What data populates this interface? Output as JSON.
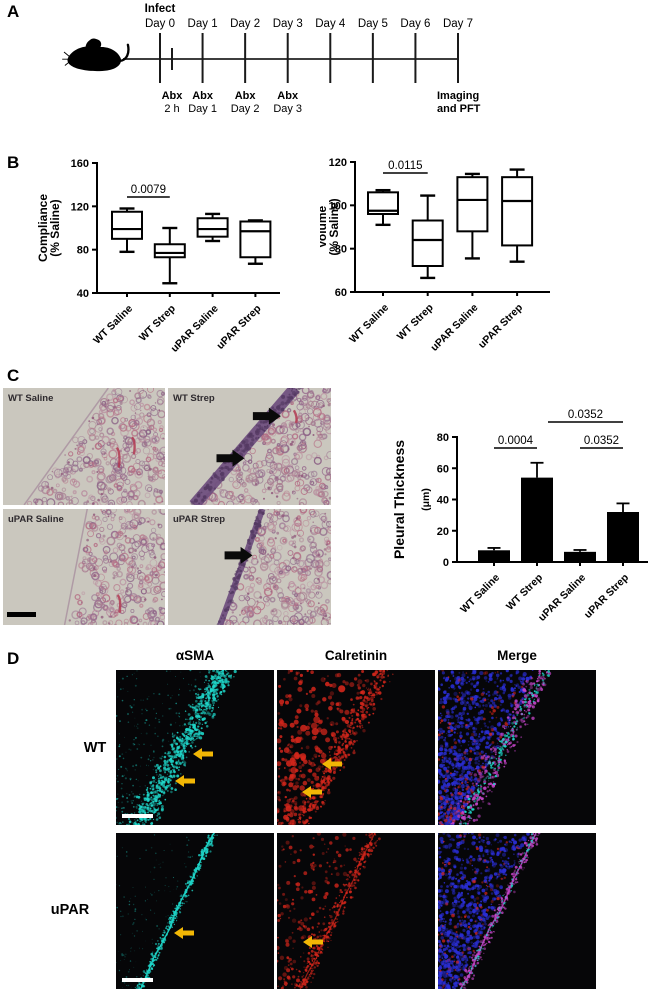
{
  "panel_a": {
    "label": "A",
    "infect_label": "Infect",
    "timeline_days": [
      "Day 0",
      "Day 1",
      "Day 2",
      "Day 3",
      "Day 4",
      "Day 5",
      "Day 6",
      "Day 7"
    ],
    "abx_label": "Abx",
    "abx_sublabels": [
      "2 h",
      "Day 1",
      "Day 2",
      "Day 3"
    ],
    "endpoint_line1": "Imaging",
    "endpoint_line2": "and PFT",
    "mouse_icon": "mouse-icon",
    "line_color": "#3d3d3d"
  },
  "panel_b": {
    "label": "B"
  },
  "panel_c": {
    "label": "C",
    "histology": [
      {
        "label": "WT Saline"
      },
      {
        "label": "WT Strep"
      },
      {
        "label": "uPAR Saline"
      },
      {
        "label": "uPAR Strep"
      }
    ],
    "histology_colors": {
      "background": "#cac7be",
      "tissue_palette": [
        "#a97f92",
        "#9a7090",
        "#bb93a2",
        "#8d6487",
        "#b56f85"
      ],
      "band": "#6e4e7e",
      "band_dot": "#553a63",
      "accent": "#b23852",
      "arrow": "#0a0a0a",
      "scalebar": "#000000"
    }
  },
  "panel_d": {
    "label": "D",
    "col_headers": [
      "αSMA",
      "Calretinin",
      "Merge"
    ],
    "row_labels": [
      "WT",
      "uPAR"
    ],
    "colors": {
      "background": "#060608",
      "asma": "#1fd6c9",
      "calretinin": "#d3261b",
      "merge_blue": "#2a2ed6",
      "merge_magenta": "#c444c8",
      "arrow": "#f2b705",
      "scalebar": "#ffffff"
    }
  },
  "chart_data": [
    {
      "type": "box",
      "panel": "B-left",
      "ylabel_line1": "Compliance",
      "ylabel_line2": "(% Saline)",
      "ylim": [
        40,
        160
      ],
      "yticks": [
        40,
        80,
        120,
        160
      ],
      "grid": false,
      "categories": [
        "WT Saline",
        "WT Strep",
        "uPAR Saline",
        "uPAR Strep"
      ],
      "boxes": [
        {
          "min": 78,
          "q1": 90,
          "median": 99,
          "q3": 115,
          "max": 118
        },
        {
          "min": 49,
          "q1": 73,
          "median": 77,
          "q3": 85,
          "max": 100
        },
        {
          "min": 88,
          "q1": 92,
          "median": 99,
          "q3": 109,
          "max": 113
        },
        {
          "min": 67,
          "q1": 73,
          "median": 97,
          "q3": 106,
          "max": 107
        }
      ],
      "significance": [
        {
          "from": 0,
          "to": 1,
          "label": "0.0079"
        }
      ]
    },
    {
      "type": "box",
      "panel": "B-right",
      "ylabel_line1": "Volume",
      "ylabel_line2": "(% Saline)",
      "ylim": [
        60,
        120
      ],
      "yticks": [
        60,
        80,
        100,
        120
      ],
      "grid": false,
      "categories": [
        "WT Saline",
        "WT Strep",
        "uPAR Saline",
        "uPAR Strep"
      ],
      "boxes": [
        {
          "min": 91,
          "q1": 96,
          "median": 97.5,
          "q3": 106,
          "max": 107
        },
        {
          "min": 66.5,
          "q1": 72,
          "median": 84,
          "q3": 93,
          "max": 104.5
        },
        {
          "min": 75.5,
          "q1": 88,
          "median": 102.5,
          "q3": 113,
          "max": 114.5
        },
        {
          "min": 74,
          "q1": 81.5,
          "median": 102,
          "q3": 113,
          "max": 116.5
        }
      ],
      "significance": [
        {
          "from": 0,
          "to": 1,
          "label": "0.0115"
        }
      ]
    },
    {
      "type": "bar",
      "panel": "C-right",
      "ylabel_line1": "Pleural Thickness",
      "ylabel_line2": "(μm)",
      "ylim": [
        0,
        80
      ],
      "yticks": [
        0,
        20,
        40,
        60,
        80
      ],
      "grid": false,
      "bar_color": "#000000",
      "categories": [
        "WT Saline",
        "WT Strep",
        "uPAR Saline",
        "uPAR Strep"
      ],
      "values": [
        7.5,
        54,
        6.5,
        32
      ],
      "errors": [
        1.5,
        9.5,
        1.2,
        5.5
      ],
      "significance": [
        {
          "from": 0,
          "to": 1,
          "label": "0.0004",
          "level": 0
        },
        {
          "from": 2,
          "to": 3,
          "label": "0.0352",
          "level": 0
        },
        {
          "from": 1,
          "to": 3,
          "label": "0.0352",
          "level": 1
        }
      ]
    }
  ]
}
